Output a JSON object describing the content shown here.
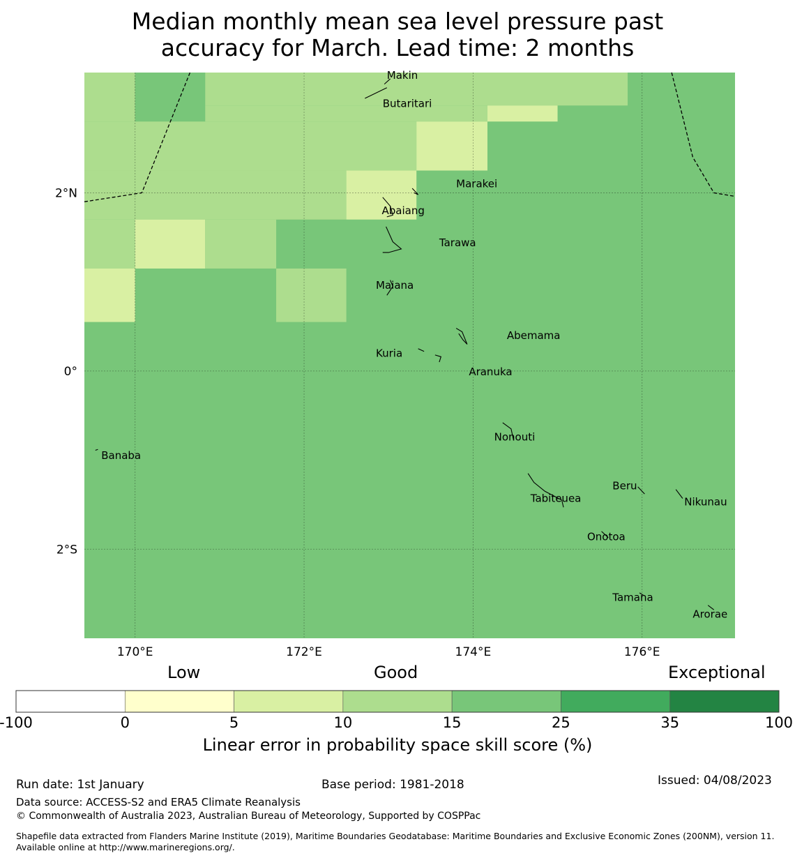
{
  "title": {
    "line1": "Median monthly mean sea level pressure past",
    "line2": "accuracy for March. Lead time: 2 months"
  },
  "map": {
    "lon_range": [
      169.4,
      177.1
    ],
    "lat_range": [
      -3.0,
      3.35
    ],
    "x_ticks": [
      {
        "value": 170,
        "label": "170°E"
      },
      {
        "value": 172,
        "label": "172°E"
      },
      {
        "value": 174,
        "label": "174°E"
      },
      {
        "value": 176,
        "label": "176°E"
      }
    ],
    "y_ticks": [
      {
        "value": 2,
        "label": "2°N"
      },
      {
        "value": 0,
        "label": "0°"
      },
      {
        "value": -2,
        "label": "2°S"
      }
    ],
    "background_color": "#78c679",
    "cells": [
      {
        "lon0": 169.4,
        "lon1": 170.0,
        "lat0": 2.8,
        "lat1": 3.35,
        "color": "#addd8e"
      },
      {
        "lon0": 170.0,
        "lon1": 170.83,
        "lat0": 2.8,
        "lat1": 3.35,
        "color": "#78c679"
      },
      {
        "lon0": 170.83,
        "lon1": 175.83,
        "lat0": 2.98,
        "lat1": 3.35,
        "color": "#addd8e"
      },
      {
        "lon0": 175.83,
        "lon1": 177.1,
        "lat0": 2.98,
        "lat1": 3.35,
        "color": "#78c679"
      },
      {
        "lon0": 170.83,
        "lon1": 174.17,
        "lat0": 2.8,
        "lat1": 2.98,
        "color": "#addd8e"
      },
      {
        "lon0": 174.17,
        "lon1": 175.0,
        "lat0": 2.8,
        "lat1": 2.98,
        "color": "#d9f0a3"
      },
      {
        "lon0": 169.4,
        "lon1": 173.33,
        "lat0": 2.25,
        "lat1": 2.8,
        "color": "#addd8e"
      },
      {
        "lon0": 173.33,
        "lon1": 174.17,
        "lat0": 2.25,
        "lat1": 2.8,
        "color": "#d9f0a3"
      },
      {
        "lon0": 169.4,
        "lon1": 172.5,
        "lat0": 1.7,
        "lat1": 2.25,
        "color": "#addd8e"
      },
      {
        "lon0": 172.5,
        "lon1": 173.33,
        "lat0": 1.7,
        "lat1": 2.25,
        "color": "#d9f0a3"
      },
      {
        "lon0": 169.4,
        "lon1": 170.0,
        "lat0": 1.15,
        "lat1": 1.7,
        "color": "#addd8e"
      },
      {
        "lon0": 170.0,
        "lon1": 170.83,
        "lat0": 1.15,
        "lat1": 1.7,
        "color": "#d9f0a3"
      },
      {
        "lon0": 170.83,
        "lon1": 171.67,
        "lat0": 1.15,
        "lat1": 1.7,
        "color": "#addd8e"
      },
      {
        "lon0": 169.4,
        "lon1": 170.0,
        "lat0": 0.55,
        "lat1": 1.15,
        "color": "#d9f0a3"
      },
      {
        "lon0": 171.67,
        "lon1": 172.5,
        "lat0": 0.55,
        "lat1": 1.15,
        "color": "#addd8e"
      }
    ],
    "boundaries": [
      [
        [
          169.4,
          1.9
        ],
        [
          170.08,
          2.0
        ],
        [
          170.65,
          3.35
        ]
      ],
      [
        [
          176.35,
          3.35
        ],
        [
          176.6,
          2.4
        ],
        [
          176.85,
          2.0
        ],
        [
          177.1,
          1.96
        ]
      ]
    ],
    "islands": [
      {
        "name": "Makin",
        "lon": 172.98,
        "lat": 3.32,
        "shape": [
          [
            172.95,
            3.22
          ],
          [
            173.02,
            3.28
          ]
        ]
      },
      {
        "name": "Butaritari",
        "lon": 172.93,
        "lat": 3.0,
        "shape": [
          [
            172.72,
            3.06
          ],
          [
            172.85,
            3.12
          ],
          [
            172.98,
            3.18
          ]
        ]
      },
      {
        "name": "Marakei",
        "lon": 173.8,
        "lat": 2.1,
        "shape": [
          [
            173.28,
            2.05
          ],
          [
            173.35,
            1.98
          ],
          [
            173.3,
            2.0
          ]
        ]
      },
      {
        "name": "Abaiang",
        "lon": 172.92,
        "lat": 1.8,
        "shape": [
          [
            172.93,
            1.95
          ],
          [
            173.02,
            1.85
          ],
          [
            173.05,
            1.75
          ],
          [
            172.98,
            1.73
          ]
        ]
      },
      {
        "name": "Tarawa",
        "lon": 173.6,
        "lat": 1.44,
        "shape": [
          [
            172.97,
            1.62
          ],
          [
            173.05,
            1.45
          ],
          [
            173.15,
            1.37
          ],
          [
            173.0,
            1.33
          ],
          [
            172.93,
            1.33
          ]
        ]
      },
      {
        "name": "Maiana",
        "lon": 172.85,
        "lat": 0.96,
        "shape": [
          [
            173.02,
            1.02
          ],
          [
            173.05,
            0.95
          ],
          [
            172.98,
            0.85
          ]
        ]
      },
      {
        "name": "Abemama",
        "lon": 174.4,
        "lat": 0.4,
        "shape": [
          [
            173.8,
            0.48
          ],
          [
            173.87,
            0.44
          ],
          [
            173.93,
            0.3
          ],
          [
            173.88,
            0.35
          ],
          [
            173.83,
            0.42
          ]
        ]
      },
      {
        "name": "Kuria",
        "lon": 172.85,
        "lat": 0.2,
        "shape": [
          [
            173.35,
            0.25
          ],
          [
            173.42,
            0.22
          ]
        ]
      },
      {
        "name": "Aranuka",
        "lon": 173.95,
        "lat": -0.01,
        "shape": [
          [
            173.55,
            0.18
          ],
          [
            173.62,
            0.16
          ],
          [
            173.6,
            0.1
          ]
        ]
      },
      {
        "name": "Nonouti",
        "lon": 174.25,
        "lat": -0.74,
        "shape": [
          [
            174.35,
            -0.58
          ],
          [
            174.45,
            -0.65
          ],
          [
            174.48,
            -0.78
          ]
        ]
      },
      {
        "name": "Tabiteuea",
        "lon": 174.68,
        "lat": -1.43,
        "shape": [
          [
            174.65,
            -1.15
          ],
          [
            174.72,
            -1.25
          ],
          [
            174.85,
            -1.35
          ],
          [
            174.95,
            -1.4
          ],
          [
            175.05,
            -1.45
          ],
          [
            175.07,
            -1.53
          ]
        ]
      },
      {
        "name": "Beru",
        "lon": 175.65,
        "lat": -1.29,
        "shape": [
          [
            175.95,
            -1.3
          ],
          [
            176.03,
            -1.38
          ]
        ]
      },
      {
        "name": "Nikunau",
        "lon": 176.5,
        "lat": -1.47,
        "shape": [
          [
            176.4,
            -1.33
          ],
          [
            176.48,
            -1.43
          ]
        ]
      },
      {
        "name": "Onotoa",
        "lon": 175.35,
        "lat": -1.86,
        "shape": [
          [
            175.52,
            -1.8
          ],
          [
            175.6,
            -1.87
          ]
        ]
      },
      {
        "name": "Tamana",
        "lon": 175.65,
        "lat": -2.54,
        "shape": [
          [
            175.97,
            -2.49
          ],
          [
            176.02,
            -2.52
          ]
        ]
      },
      {
        "name": "Arorae",
        "lon": 176.6,
        "lat": -2.73,
        "shape": [
          [
            176.78,
            -2.63
          ],
          [
            176.85,
            -2.68
          ]
        ]
      },
      {
        "name": "Banaba",
        "lon": 169.6,
        "lat": -0.95,
        "shape": [
          [
            169.53,
            -0.89
          ],
          [
            169.56,
            -0.88
          ]
        ]
      }
    ]
  },
  "legend": {
    "categories": {
      "low": "Low",
      "good": "Good",
      "exceptional": "Exceptional"
    },
    "bins": [
      {
        "from": -100,
        "to": 0,
        "color": "#ffffff"
      },
      {
        "from": 0,
        "to": 5,
        "color": "#ffffcc"
      },
      {
        "from": 5,
        "to": 10,
        "color": "#d9f0a3"
      },
      {
        "from": 10,
        "to": 15,
        "color": "#addd8e"
      },
      {
        "from": 15,
        "to": 25,
        "color": "#78c679"
      },
      {
        "from": 25,
        "to": 35,
        "color": "#41ab5d"
      },
      {
        "from": 35,
        "to": 100,
        "color": "#238443"
      }
    ],
    "tick_labels": [
      "-100",
      "0",
      "5",
      "10",
      "15",
      "25",
      "35",
      "100"
    ],
    "label": "Linear error in probability space skill score (%)"
  },
  "footer": {
    "run_date": "Run date: 1st January",
    "base_period": "Base period: 1981-2018",
    "issued": "Issued: 04/08/2023",
    "data_source": "Data source: ACCESS-S2 and ERA5 Climate Reanalysis",
    "copyright": "© Commonwealth of Australia 2023, Australian Bureau of Meteorology, Supported by COSPPac",
    "shapefile": "Shapefile data extracted from Flanders Marine Institute (2019), Maritime Boundaries Geodatabase: Maritime Boundaries and Exclusive Economic Zones (200NM), version 11. Available online at http://www.marineregions.org/."
  }
}
